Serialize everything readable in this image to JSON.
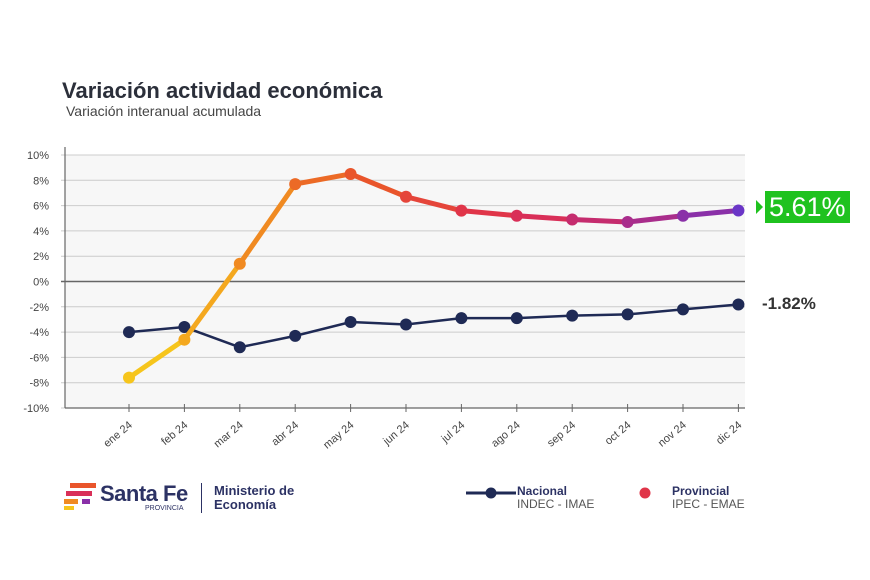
{
  "header": {
    "title": "Variación actividad económica",
    "subtitle": "Variación interanual acumulada"
  },
  "chart_data": {
    "type": "line",
    "title": "Variación actividad económica",
    "subtitle": "Variación interanual acumulada",
    "categories": [
      "ene 24",
      "feb 24",
      "mar 24",
      "abr 24",
      "may 24",
      "jun 24",
      "jul 24",
      "ago 24",
      "sep 24",
      "oct 24",
      "nov 24",
      "dic 24"
    ],
    "yticks": [
      "10%",
      "8%",
      "6%",
      "4%",
      "2%",
      "0%",
      "-2%",
      "-4%",
      "-6%",
      "-8%",
      "-10%"
    ],
    "ylim": [
      -10,
      10
    ],
    "grid": true,
    "legend_position": "bottom-right",
    "series": [
      {
        "name": "Nacional",
        "source": "INDEC - IMAE",
        "color": "#1f2a55",
        "values": [
          -4.0,
          -3.6,
          -5.2,
          -4.3,
          -3.2,
          -3.4,
          -2.9,
          -2.9,
          -2.7,
          -2.6,
          -2.2,
          -1.82
        ]
      },
      {
        "name": "Provincial",
        "source": "IPEC - EMAE",
        "colors": [
          "#f6c51c",
          "#f4a81f",
          "#f08a22",
          "#ec6a26",
          "#e9552b",
          "#e5453a",
          "#e03549",
          "#d92f58",
          "#c52c6e",
          "#a92d8c",
          "#8a30a8",
          "#6b36c7"
        ],
        "values": [
          -7.6,
          -4.6,
          1.4,
          7.7,
          8.5,
          6.7,
          5.6,
          5.2,
          4.9,
          4.7,
          5.2,
          5.61
        ]
      }
    ],
    "annotations": {
      "provincial_last": "5.61%",
      "nacional_last": "-1.82%",
      "highlight_color": "#1fc21f"
    }
  },
  "footer": {
    "logo_name": "Santa Fe",
    "logo_sub": "PROVINCIA",
    "ministry_line1": "Ministerio de",
    "ministry_line2": "Economía"
  }
}
